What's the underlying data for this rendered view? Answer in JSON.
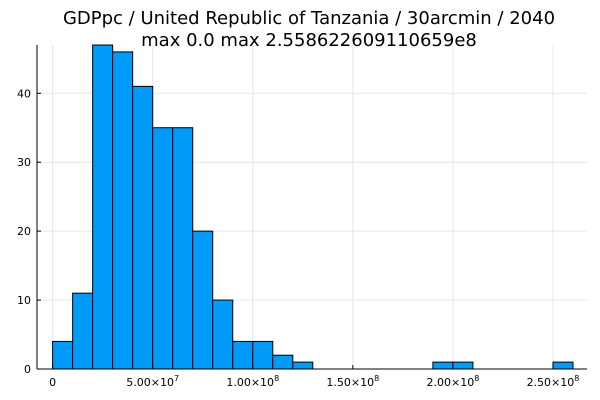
{
  "chart_data": {
    "type": "bar",
    "title_line1": "GDPpc / United Republic of Tanzania / 30arcmin / 2040",
    "title_line2": "max 0.0  max 2.558622609110659e8",
    "xlabel": "",
    "ylabel": "",
    "bin_width": 10000000,
    "bins": [
      {
        "x0": 0,
        "x1": 10000000,
        "count": 4
      },
      {
        "x0": 10000000,
        "x1": 20000000,
        "count": 11
      },
      {
        "x0": 20000000,
        "x1": 30000000,
        "count": 47
      },
      {
        "x0": 30000000,
        "x1": 40000000,
        "count": 46
      },
      {
        "x0": 40000000,
        "x1": 50000000,
        "count": 41
      },
      {
        "x0": 50000000,
        "x1": 60000000,
        "count": 35
      },
      {
        "x0": 60000000,
        "x1": 70000000,
        "count": 35
      },
      {
        "x0": 70000000,
        "x1": 80000000,
        "count": 20
      },
      {
        "x0": 80000000,
        "x1": 90000000,
        "count": 10
      },
      {
        "x0": 90000000,
        "x1": 100000000,
        "count": 4
      },
      {
        "x0": 100000000,
        "x1": 110000000,
        "count": 4
      },
      {
        "x0": 110000000,
        "x1": 120000000,
        "count": 2
      },
      {
        "x0": 120000000,
        "x1": 130000000,
        "count": 1
      },
      {
        "x0": 190000000,
        "x1": 200000000,
        "count": 1
      },
      {
        "x0": 200000000,
        "x1": 210000000,
        "count": 1
      },
      {
        "x0": 250000000,
        "x1": 260000000,
        "count": 1
      }
    ],
    "xlim": [
      -7800000,
      267000000
    ],
    "ylim": [
      0,
      47
    ],
    "x_ticks": [
      {
        "value": 0,
        "mantissa": "0",
        "exponent": ""
      },
      {
        "value": 50000000,
        "mantissa": "5.00×10",
        "exponent": "7"
      },
      {
        "value": 100000000,
        "mantissa": "1.00×10",
        "exponent": "8"
      },
      {
        "value": 150000000,
        "mantissa": "1.50×10",
        "exponent": "8"
      },
      {
        "value": 200000000,
        "mantissa": "2.00×10",
        "exponent": "8"
      },
      {
        "value": 250000000,
        "mantissa": "2.50×10",
        "exponent": "8"
      }
    ],
    "y_ticks": [
      {
        "value": 0,
        "label": "0"
      },
      {
        "value": 10,
        "label": "10"
      },
      {
        "value": 20,
        "label": "20"
      },
      {
        "value": 30,
        "label": "30"
      },
      {
        "value": 40,
        "label": "40"
      }
    ],
    "grid": true,
    "legend": "none",
    "colors": {
      "bar_fill": "#009af9",
      "bar_edge": "#000000",
      "grid": "#e6e6e6",
      "axis": "#000000"
    }
  }
}
